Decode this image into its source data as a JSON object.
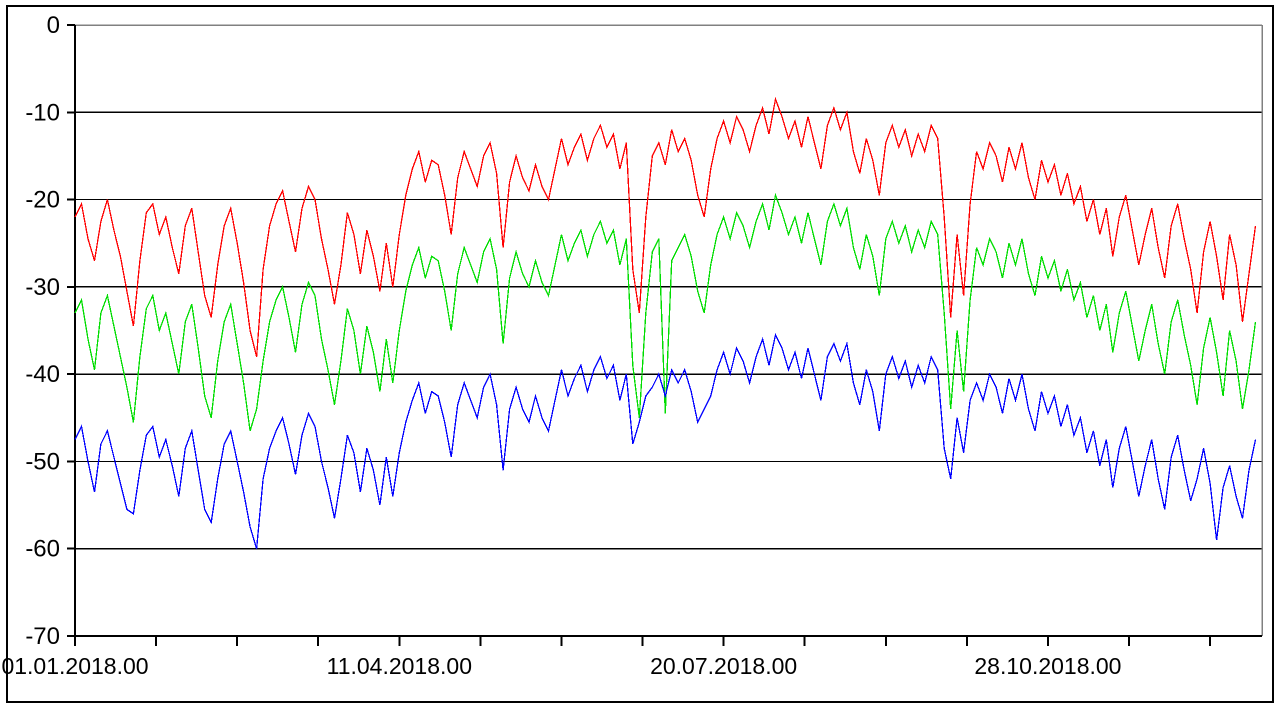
{
  "window": {
    "background": "#ffffff",
    "border_color": "#000000"
  },
  "chart_data": {
    "type": "line",
    "title": "",
    "legend": null,
    "grid": "horizontal",
    "frame_color": "#808080",
    "axis_color": "#000000",
    "x_axis": {
      "tick_labels": [
        "01.01.2018.00",
        "11.04.2018.00",
        "20.07.2018.00",
        "28.10.2018.00"
      ],
      "tick_positions_days": [
        0,
        100,
        200,
        300
      ],
      "minor_tick_days": [
        0,
        25,
        50,
        75,
        100,
        125,
        150,
        175,
        200,
        225,
        250,
        275,
        300,
        325,
        350
      ],
      "range_days": [
        0,
        366
      ]
    },
    "y_axis": {
      "tick_labels": [
        "0",
        "-10",
        "-20",
        "-30",
        "-40",
        "-50",
        "-60",
        "-70"
      ],
      "ticks": [
        0,
        -10,
        -20,
        -30,
        -40,
        -50,
        -60,
        -70
      ],
      "range": [
        -70,
        0
      ]
    },
    "x_step_days": 2,
    "series": [
      {
        "name": "series-red",
        "color": "#ff0000",
        "values": [
          -22.0,
          -20.5,
          -24.5,
          -27.0,
          -22.5,
          -20.0,
          -23.5,
          -26.5,
          -30.5,
          -34.5,
          -27.0,
          -21.5,
          -20.5,
          -24.0,
          -22.0,
          -25.5,
          -28.5,
          -23.0,
          -21.0,
          -26.0,
          -31.0,
          -33.5,
          -27.5,
          -23.0,
          -21.0,
          -25.0,
          -29.5,
          -35.0,
          -38.0,
          -28.0,
          -23.0,
          -20.5,
          -19.0,
          -22.5,
          -26.0,
          -21.0,
          -18.5,
          -20.0,
          -24.5,
          -28.0,
          -32.0,
          -27.5,
          -21.5,
          -24.0,
          -28.5,
          -23.5,
          -26.5,
          -30.5,
          -25.0,
          -30.0,
          -24.0,
          -19.5,
          -16.5,
          -14.5,
          -18.0,
          -15.5,
          -16.0,
          -19.5,
          -24.0,
          -17.5,
          -14.5,
          -16.5,
          -18.5,
          -15.0,
          -13.5,
          -17.0,
          -25.5,
          -18.0,
          -15.0,
          -17.5,
          -19.0,
          -16.0,
          -18.5,
          -20.0,
          -16.5,
          -13.0,
          -16.0,
          -14.0,
          -12.5,
          -15.5,
          -13.0,
          -11.5,
          -14.0,
          -12.5,
          -16.5,
          -13.5,
          -28.0,
          -33.0,
          -22.0,
          -15.0,
          -13.5,
          -16.0,
          -12.0,
          -14.5,
          -13.0,
          -15.5,
          -19.5,
          -22.0,
          -16.5,
          -13.0,
          -11.0,
          -13.5,
          -10.5,
          -12.0,
          -14.5,
          -11.5,
          -9.5,
          -12.5,
          -8.5,
          -10.5,
          -13.0,
          -11.0,
          -14.0,
          -10.5,
          -13.5,
          -16.5,
          -11.5,
          -9.5,
          -12.0,
          -10.0,
          -14.5,
          -17.0,
          -13.0,
          -15.5,
          -19.5,
          -13.5,
          -11.5,
          -14.0,
          -12.0,
          -15.0,
          -12.5,
          -14.5,
          -11.5,
          -13.0,
          -22.0,
          -33.5,
          -24.0,
          -31.0,
          -20.5,
          -14.5,
          -16.5,
          -13.5,
          -15.0,
          -18.0,
          -14.0,
          -16.5,
          -13.5,
          -17.5,
          -20.0,
          -15.5,
          -18.0,
          -16.0,
          -19.5,
          -17.0,
          -20.5,
          -18.5,
          -22.5,
          -20.0,
          -24.0,
          -21.0,
          -26.5,
          -22.0,
          -19.5,
          -23.5,
          -27.5,
          -24.0,
          -21.0,
          -25.5,
          -29.0,
          -23.0,
          -20.5,
          -24.5,
          -28.0,
          -33.0,
          -26.0,
          -22.5,
          -26.5,
          -31.5,
          -24.0,
          -27.5,
          -34.0,
          -28.5,
          -23.0
        ]
      },
      {
        "name": "series-green",
        "color": "#00dd00",
        "values": [
          -33.0,
          -31.5,
          -36.0,
          -39.5,
          -33.0,
          -31.0,
          -34.5,
          -38.0,
          -41.5,
          -45.5,
          -38.0,
          -32.5,
          -31.0,
          -35.0,
          -33.0,
          -36.5,
          -40.0,
          -34.0,
          -32.0,
          -37.0,
          -42.5,
          -45.0,
          -38.5,
          -34.0,
          -32.0,
          -36.5,
          -41.0,
          -46.5,
          -44.0,
          -38.5,
          -34.0,
          -31.5,
          -30.0,
          -33.5,
          -37.5,
          -32.0,
          -29.5,
          -31.0,
          -36.0,
          -39.5,
          -43.5,
          -38.5,
          -32.5,
          -35.0,
          -40.0,
          -34.5,
          -37.5,
          -42.0,
          -36.0,
          -41.0,
          -35.0,
          -30.5,
          -27.5,
          -25.5,
          -29.0,
          -26.5,
          -27.0,
          -30.5,
          -35.0,
          -28.5,
          -25.5,
          -27.5,
          -29.5,
          -26.0,
          -24.5,
          -28.0,
          -36.5,
          -29.0,
          -26.0,
          -28.5,
          -30.0,
          -27.0,
          -29.5,
          -31.0,
          -27.5,
          -24.0,
          -27.0,
          -25.0,
          -23.5,
          -26.5,
          -24.0,
          -22.5,
          -25.0,
          -23.5,
          -27.5,
          -24.5,
          -39.0,
          -45.0,
          -33.0,
          -26.0,
          -24.5,
          -44.5,
          -27.0,
          -25.5,
          -24.0,
          -26.5,
          -30.5,
          -33.0,
          -27.5,
          -24.0,
          -22.0,
          -24.5,
          -21.5,
          -23.0,
          -25.5,
          -22.5,
          -20.5,
          -23.5,
          -19.5,
          -21.5,
          -24.0,
          -22.0,
          -25.0,
          -21.5,
          -24.5,
          -27.5,
          -22.5,
          -20.5,
          -23.0,
          -21.0,
          -25.5,
          -28.0,
          -24.0,
          -26.5,
          -31.0,
          -24.5,
          -22.5,
          -25.0,
          -23.0,
          -26.0,
          -23.5,
          -25.5,
          -22.5,
          -24.0,
          -33.0,
          -44.0,
          -35.0,
          -42.0,
          -31.5,
          -25.5,
          -27.5,
          -24.5,
          -26.0,
          -29.0,
          -25.0,
          -27.5,
          -24.5,
          -28.5,
          -31.0,
          -26.5,
          -29.0,
          -27.0,
          -30.5,
          -28.0,
          -31.5,
          -29.5,
          -33.5,
          -31.0,
          -35.0,
          -32.0,
          -37.5,
          -33.0,
          -30.5,
          -34.5,
          -38.5,
          -35.0,
          -32.0,
          -36.5,
          -40.0,
          -34.0,
          -31.5,
          -35.5,
          -39.0,
          -43.5,
          -37.0,
          -33.5,
          -37.5,
          -42.5,
          -35.0,
          -38.5,
          -44.0,
          -39.5,
          -34.0
        ]
      },
      {
        "name": "series-blue",
        "color": "#0000ff",
        "values": [
          -47.5,
          -46.0,
          -50.0,
          -53.5,
          -48.0,
          -46.5,
          -49.5,
          -52.5,
          -55.5,
          -56.0,
          -51.0,
          -47.0,
          -46.0,
          -49.5,
          -47.5,
          -50.5,
          -54.0,
          -48.5,
          -46.5,
          -51.0,
          -55.5,
          -57.0,
          -52.0,
          -48.0,
          -46.5,
          -50.0,
          -53.5,
          -57.5,
          -60.0,
          -52.0,
          -48.5,
          -46.5,
          -45.0,
          -48.0,
          -51.5,
          -47.0,
          -44.5,
          -46.0,
          -50.0,
          -53.0,
          -56.5,
          -52.0,
          -47.0,
          -49.0,
          -53.5,
          -48.5,
          -51.0,
          -55.0,
          -49.5,
          -54.0,
          -49.0,
          -45.5,
          -43.0,
          -41.0,
          -44.5,
          -42.0,
          -42.5,
          -45.5,
          -49.5,
          -43.5,
          -41.0,
          -43.0,
          -45.0,
          -41.5,
          -40.0,
          -43.5,
          -51.0,
          -44.0,
          -41.5,
          -44.0,
          -45.5,
          -42.5,
          -45.0,
          -46.5,
          -43.0,
          -39.5,
          -42.5,
          -40.5,
          -39.0,
          -42.0,
          -39.5,
          -38.0,
          -40.5,
          -39.0,
          -43.0,
          -40.0,
          -48.0,
          -45.5,
          -42.5,
          -41.5,
          -40.0,
          -42.5,
          -39.5,
          -41.0,
          -39.5,
          -42.0,
          -45.5,
          -44.0,
          -42.5,
          -39.5,
          -37.5,
          -40.0,
          -37.0,
          -38.5,
          -41.0,
          -38.0,
          -36.0,
          -39.0,
          -35.5,
          -37.0,
          -39.5,
          -37.5,
          -40.5,
          -37.0,
          -40.0,
          -43.0,
          -38.0,
          -36.5,
          -38.5,
          -36.5,
          -41.0,
          -43.5,
          -39.5,
          -42.0,
          -46.5,
          -40.0,
          -38.0,
          -40.5,
          -38.5,
          -41.5,
          -39.0,
          -41.0,
          -38.0,
          -39.5,
          -48.5,
          -52.0,
          -45.0,
          -49.0,
          -43.0,
          -41.0,
          -43.0,
          -40.0,
          -41.5,
          -44.5,
          -40.5,
          -43.0,
          -40.0,
          -44.0,
          -46.5,
          -42.0,
          -44.5,
          -42.5,
          -46.0,
          -43.5,
          -47.0,
          -45.0,
          -49.0,
          -46.5,
          -50.5,
          -47.5,
          -53.0,
          -48.5,
          -46.0,
          -50.0,
          -54.0,
          -50.5,
          -47.5,
          -52.0,
          -55.5,
          -49.5,
          -47.0,
          -51.0,
          -54.5,
          -52.0,
          -48.5,
          -52.5,
          -59.0,
          -53.0,
          -50.5,
          -54.0,
          -56.5,
          -51.0,
          -47.5
        ]
      }
    ]
  }
}
